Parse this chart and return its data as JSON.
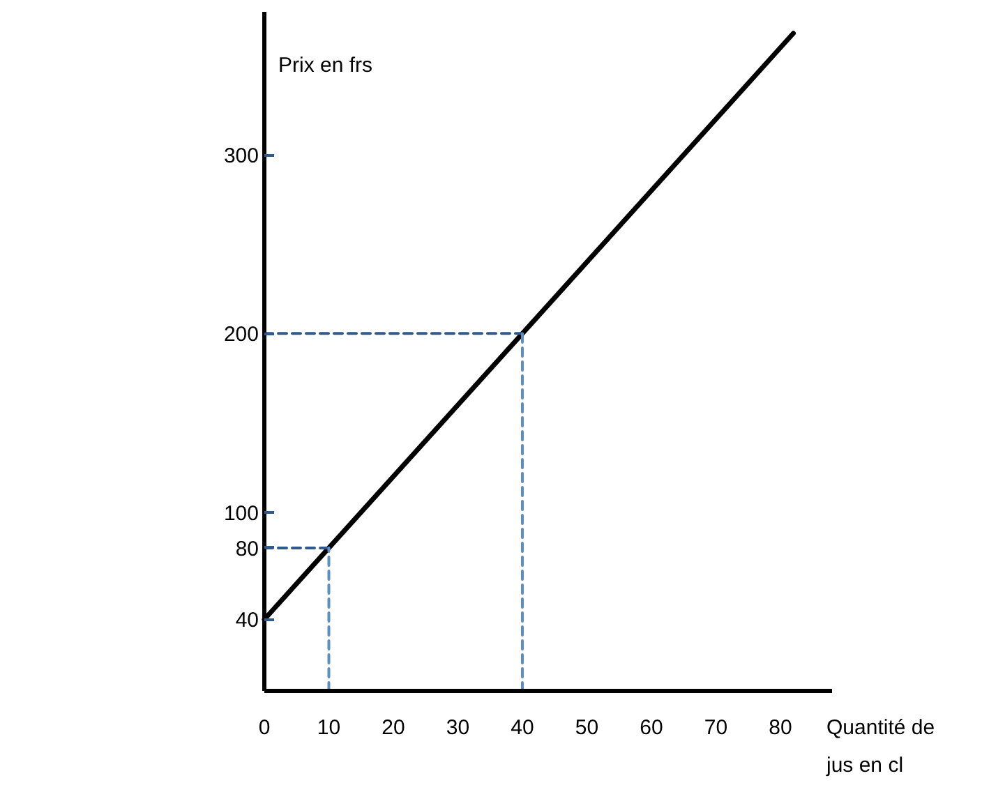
{
  "chart_data": {
    "type": "line",
    "xlabel": "Quantité de jus en cl",
    "ylabel": "Prix en frs",
    "xlim": [
      0,
      88
    ],
    "ylim": [
      0,
      380
    ],
    "xticks": [
      0,
      10,
      20,
      30,
      40,
      50,
      60,
      70,
      80
    ],
    "yticks": [
      40,
      80,
      100,
      200,
      300
    ],
    "grid": false,
    "series": [
      {
        "color": "#000000",
        "x": [
          0,
          10,
          40,
          82
        ],
        "values": [
          40,
          80,
          200,
          368
        ]
      },
      {
        "color": "#2f5a8c",
        "x": [
          0,
          10
        ],
        "values": [
          80,
          80
        ],
        "line_style": "dashed"
      },
      {
        "color": "#5b8fc9",
        "x": [
          10,
          10
        ],
        "values": [
          0,
          80
        ],
        "line_style": "dashed"
      },
      {
        "color": "#2f5a8c",
        "x": [
          0,
          40
        ],
        "values": [
          200,
          200
        ],
        "line_style": "dashed"
      },
      {
        "color": "#5b8fc9",
        "x": [
          40,
          40
        ],
        "values": [
          0,
          200
        ],
        "line_style": "dashed"
      }
    ]
  }
}
